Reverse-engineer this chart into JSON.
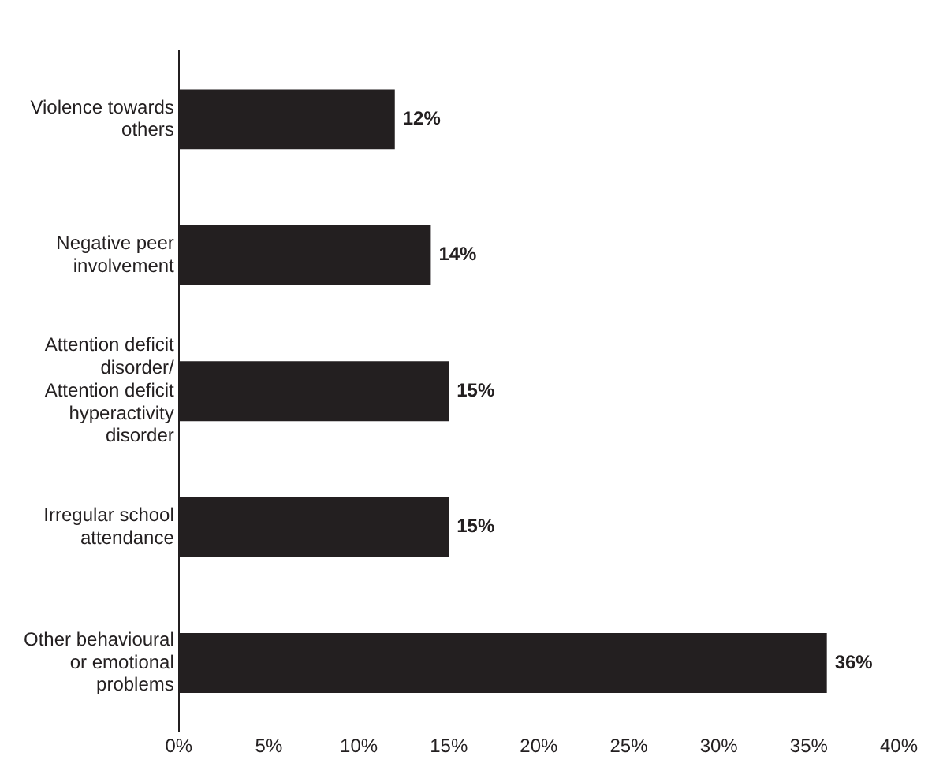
{
  "chart_data": {
    "type": "bar",
    "orientation": "horizontal",
    "categories": [
      "Violence towards others",
      "Negative peer involvement",
      "Attention deficit disorder/ Attention deficit hyperactivity disorder",
      "Irregular school attendance",
      "Other behavioural or emotional problems"
    ],
    "values": [
      12,
      14,
      15,
      15,
      36
    ],
    "color": "#231f20",
    "value_labels": [
      "12%",
      "14%",
      "15%",
      "15%",
      "36%"
    ],
    "xlim": [
      0,
      40
    ],
    "xticks": [
      {
        "value": 0,
        "label": "0%"
      },
      {
        "value": 5,
        "label": "5%"
      },
      {
        "value": 10,
        "label": "10%"
      },
      {
        "value": 15,
        "label": "15%"
      },
      {
        "value": 20,
        "label": "20%"
      },
      {
        "value": 25,
        "label": "25%"
      },
      {
        "value": 30,
        "label": "30%"
      },
      {
        "value": 35,
        "label": "35%"
      },
      {
        "value": 40,
        "label": "40%"
      }
    ],
    "grid": false,
    "legend": false
  }
}
